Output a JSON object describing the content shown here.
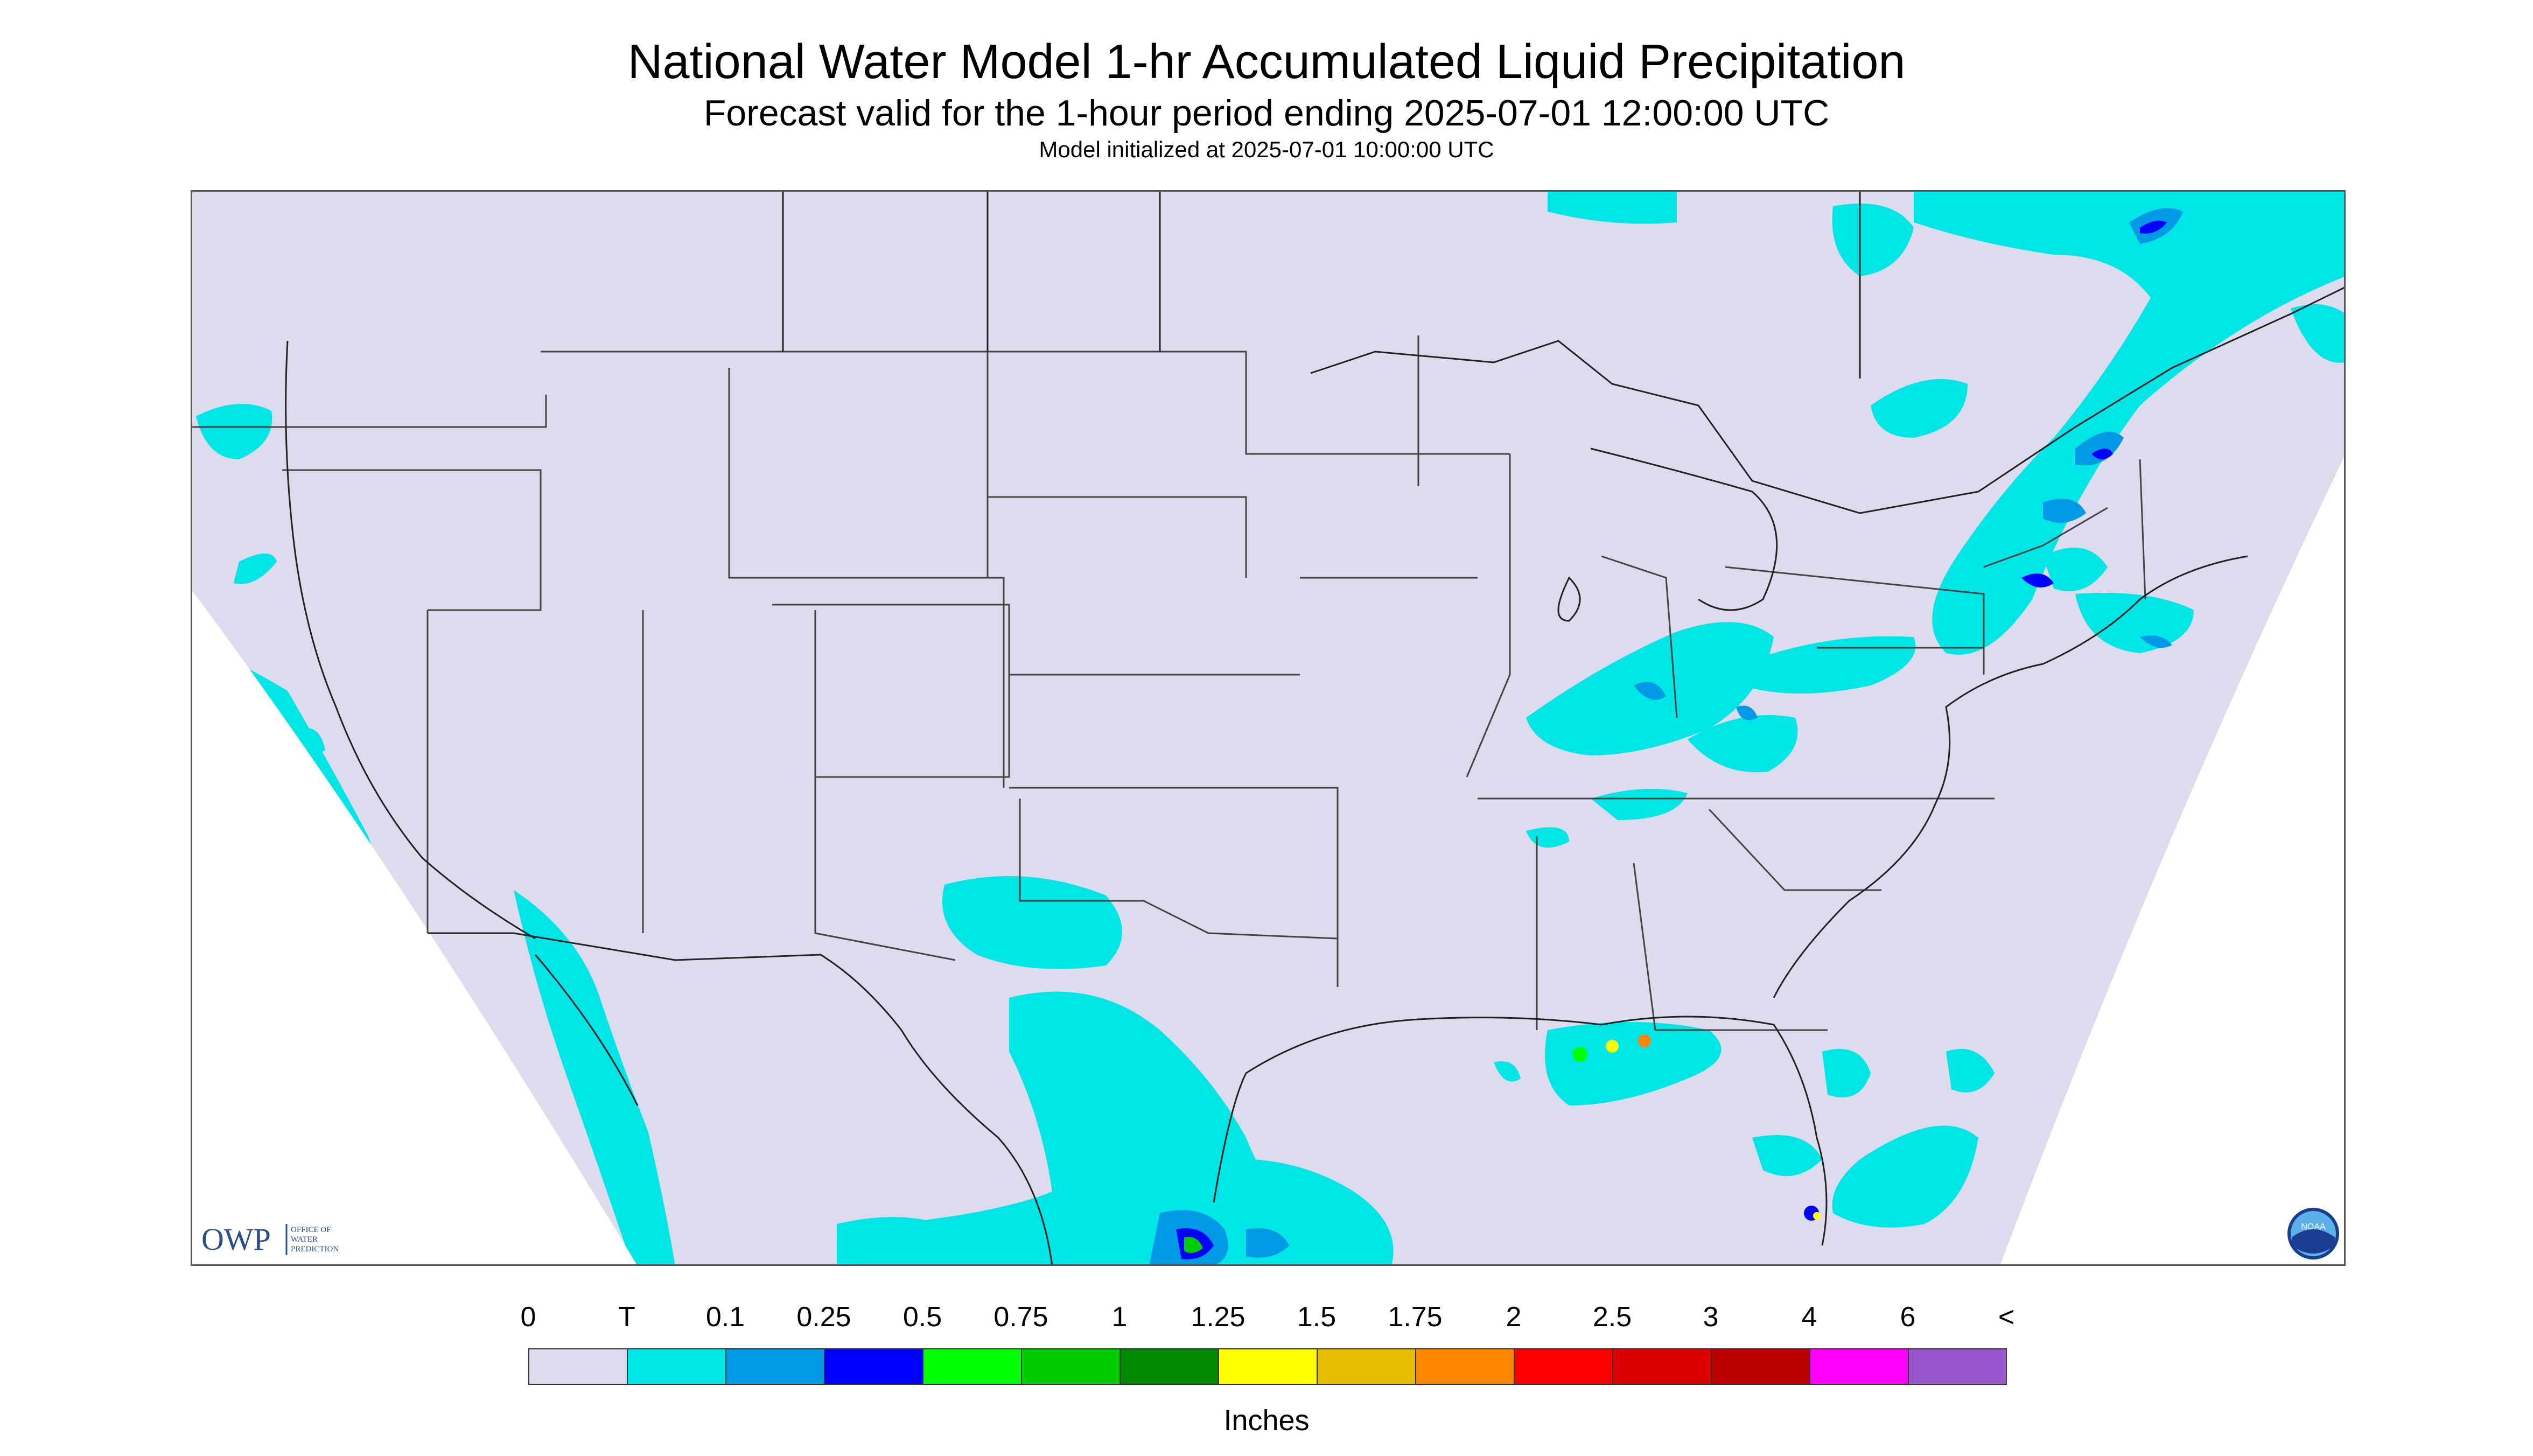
{
  "title": "National Water Model 1-hr Accumulated Liquid Precipitation",
  "subtitle": "Forecast valid for the 1-hour period ending 2025-07-01 12:00:00 UTC",
  "init_text": "Model initialized at 2025-07-01 10:00:00 UTC",
  "owp_logo": {
    "abbr": "OWP",
    "line1": "OFFICE OF",
    "line2": "WATER",
    "line3": "PREDICTION"
  },
  "noaa_logo": "NOAA",
  "legend": {
    "units": "Inches",
    "labels": [
      "0",
      "T",
      "0.1",
      "0.25",
      "0.5",
      "0.75",
      "1",
      "1.25",
      "1.5",
      "1.75",
      "2",
      "2.5",
      "3",
      "4",
      "6",
      "<"
    ],
    "colors": [
      "#dcdcee",
      "#00e5e5",
      "#0099e6",
      "#0000ff",
      "#00ff00",
      "#00cc00",
      "#008800",
      "#ffff00",
      "#e6be00",
      "#ff8800",
      "#ff0000",
      "#dd0000",
      "#bb0000",
      "#ff00ff",
      "#9955cc"
    ]
  },
  "colors": {
    "land": "#dcdcee",
    "outside": "#ffffff",
    "trace": "#00e5e5",
    "light": "#0099e6",
    "moderate": "#0000ff",
    "heavy_green": "#00ff00",
    "border": "#444444"
  }
}
